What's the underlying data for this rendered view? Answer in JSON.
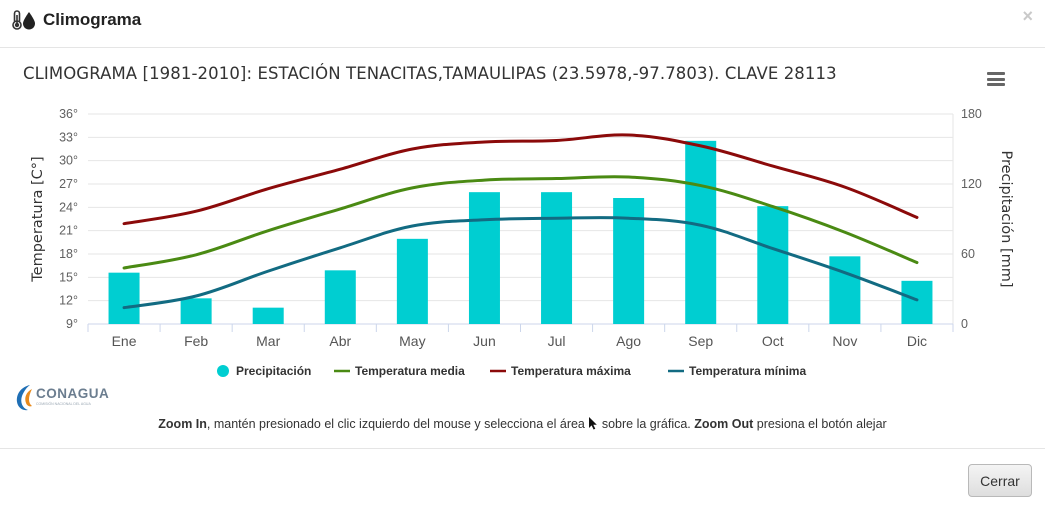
{
  "modal": {
    "title": "Climograma",
    "close_label": "Cerrar",
    "close_icon": "×"
  },
  "hint": {
    "zoom_in": "Zoom In",
    "text1": ", mantén presionado el clic izquierdo del mouse y selecciona el área ",
    "text2": " sobre la gráfica. ",
    "zoom_out": "Zoom Out",
    "text3": " presiona el botón alejar"
  },
  "logo": {
    "text": "CONAGUA",
    "sub": "COMISIÓN NACIONAL DEL AGUA"
  },
  "colors": {
    "precip": "#00CED1",
    "media": "#4a8a13",
    "maxima": "#8b0a0a",
    "minima": "#126b82",
    "grid": "#e6e6e6"
  },
  "chart_data": {
    "type": "bar",
    "title": "CLIMOGRAMA [1981-2010]: ESTACIÓN TENACITAS,TAMAULIPAS (23.5978,-97.7803). CLAVE 28113",
    "categories": [
      "Ene",
      "Feb",
      "Mar",
      "Abr",
      "May",
      "Jun",
      "Jul",
      "Ago",
      "Sep",
      "Oct",
      "Nov",
      "Dic"
    ],
    "ylabel_left": "Temperatura [C°]",
    "ylabel_right": "Precipitación [mm]",
    "ylim_left": [
      9,
      36
    ],
    "yticks_left": [
      "9°",
      "12°",
      "15°",
      "18°",
      "21°",
      "24°",
      "27°",
      "30°",
      "33°",
      "36°"
    ],
    "ylim_right": [
      0,
      180
    ],
    "yticks_right": [
      "0",
      "60",
      "120",
      "180"
    ],
    "series": [
      {
        "name": "Precipitación",
        "type": "bar",
        "axis": "right",
        "values": [
          44,
          22,
          14,
          46,
          73,
          113,
          113,
          108,
          157,
          101,
          58,
          37
        ]
      },
      {
        "name": "Temperatura media",
        "type": "line",
        "axis": "left",
        "values": [
          16.2,
          17.9,
          21.0,
          23.8,
          26.5,
          27.5,
          27.7,
          27.9,
          26.8,
          24.1,
          20.8,
          16.9
        ]
      },
      {
        "name": "Temperatura máxima",
        "type": "line",
        "axis": "left",
        "values": [
          21.9,
          23.5,
          26.4,
          28.9,
          31.5,
          32.4,
          32.6,
          33.3,
          31.9,
          29.3,
          26.6,
          22.7
        ]
      },
      {
        "name": "Temperatura mínima",
        "type": "line",
        "axis": "left",
        "values": [
          11.1,
          12.6,
          15.8,
          18.8,
          21.6,
          22.4,
          22.6,
          22.6,
          21.7,
          18.7,
          15.6,
          12.1
        ]
      }
    ],
    "legend_position": "bottom-center",
    "grid": true
  }
}
